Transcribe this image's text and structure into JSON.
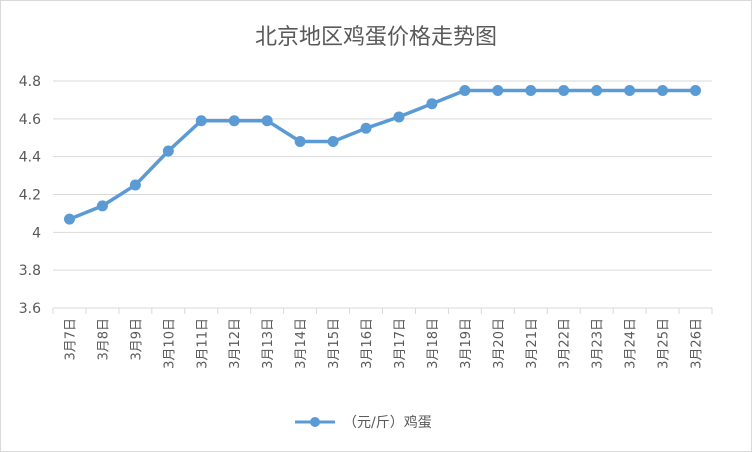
{
  "chart_data": {
    "type": "line",
    "title": "北京地区鸡蛋价格走势图",
    "categories": [
      "3月7日",
      "3月8日",
      "3月9日",
      "3月10日",
      "3月11日",
      "3月12日",
      "3月13日",
      "3月14日",
      "3月15日",
      "3月16日",
      "3月17日",
      "3月18日",
      "3月19日",
      "3月20日",
      "3月21日",
      "3月22日",
      "3月23日",
      "3月24日",
      "3月25日",
      "3月26日"
    ],
    "series": [
      {
        "name": "（元/斤）鸡蛋",
        "values": [
          4.07,
          4.14,
          4.25,
          4.43,
          4.59,
          4.59,
          4.59,
          4.48,
          4.48,
          4.55,
          4.61,
          4.68,
          4.75,
          4.75,
          4.75,
          4.75,
          4.75,
          4.75,
          4.75,
          4.75
        ]
      }
    ],
    "ylim": [
      3.6,
      4.8
    ],
    "yticks": [
      "3.6",
      "3.8",
      "4",
      "4.2",
      "4.4",
      "4.6",
      "4.8"
    ],
    "grid": true,
    "legend_position": "bottom",
    "colors": {
      "line": "#5b9bd5",
      "grid": "#d9d9d9",
      "text": "#595959"
    }
  }
}
